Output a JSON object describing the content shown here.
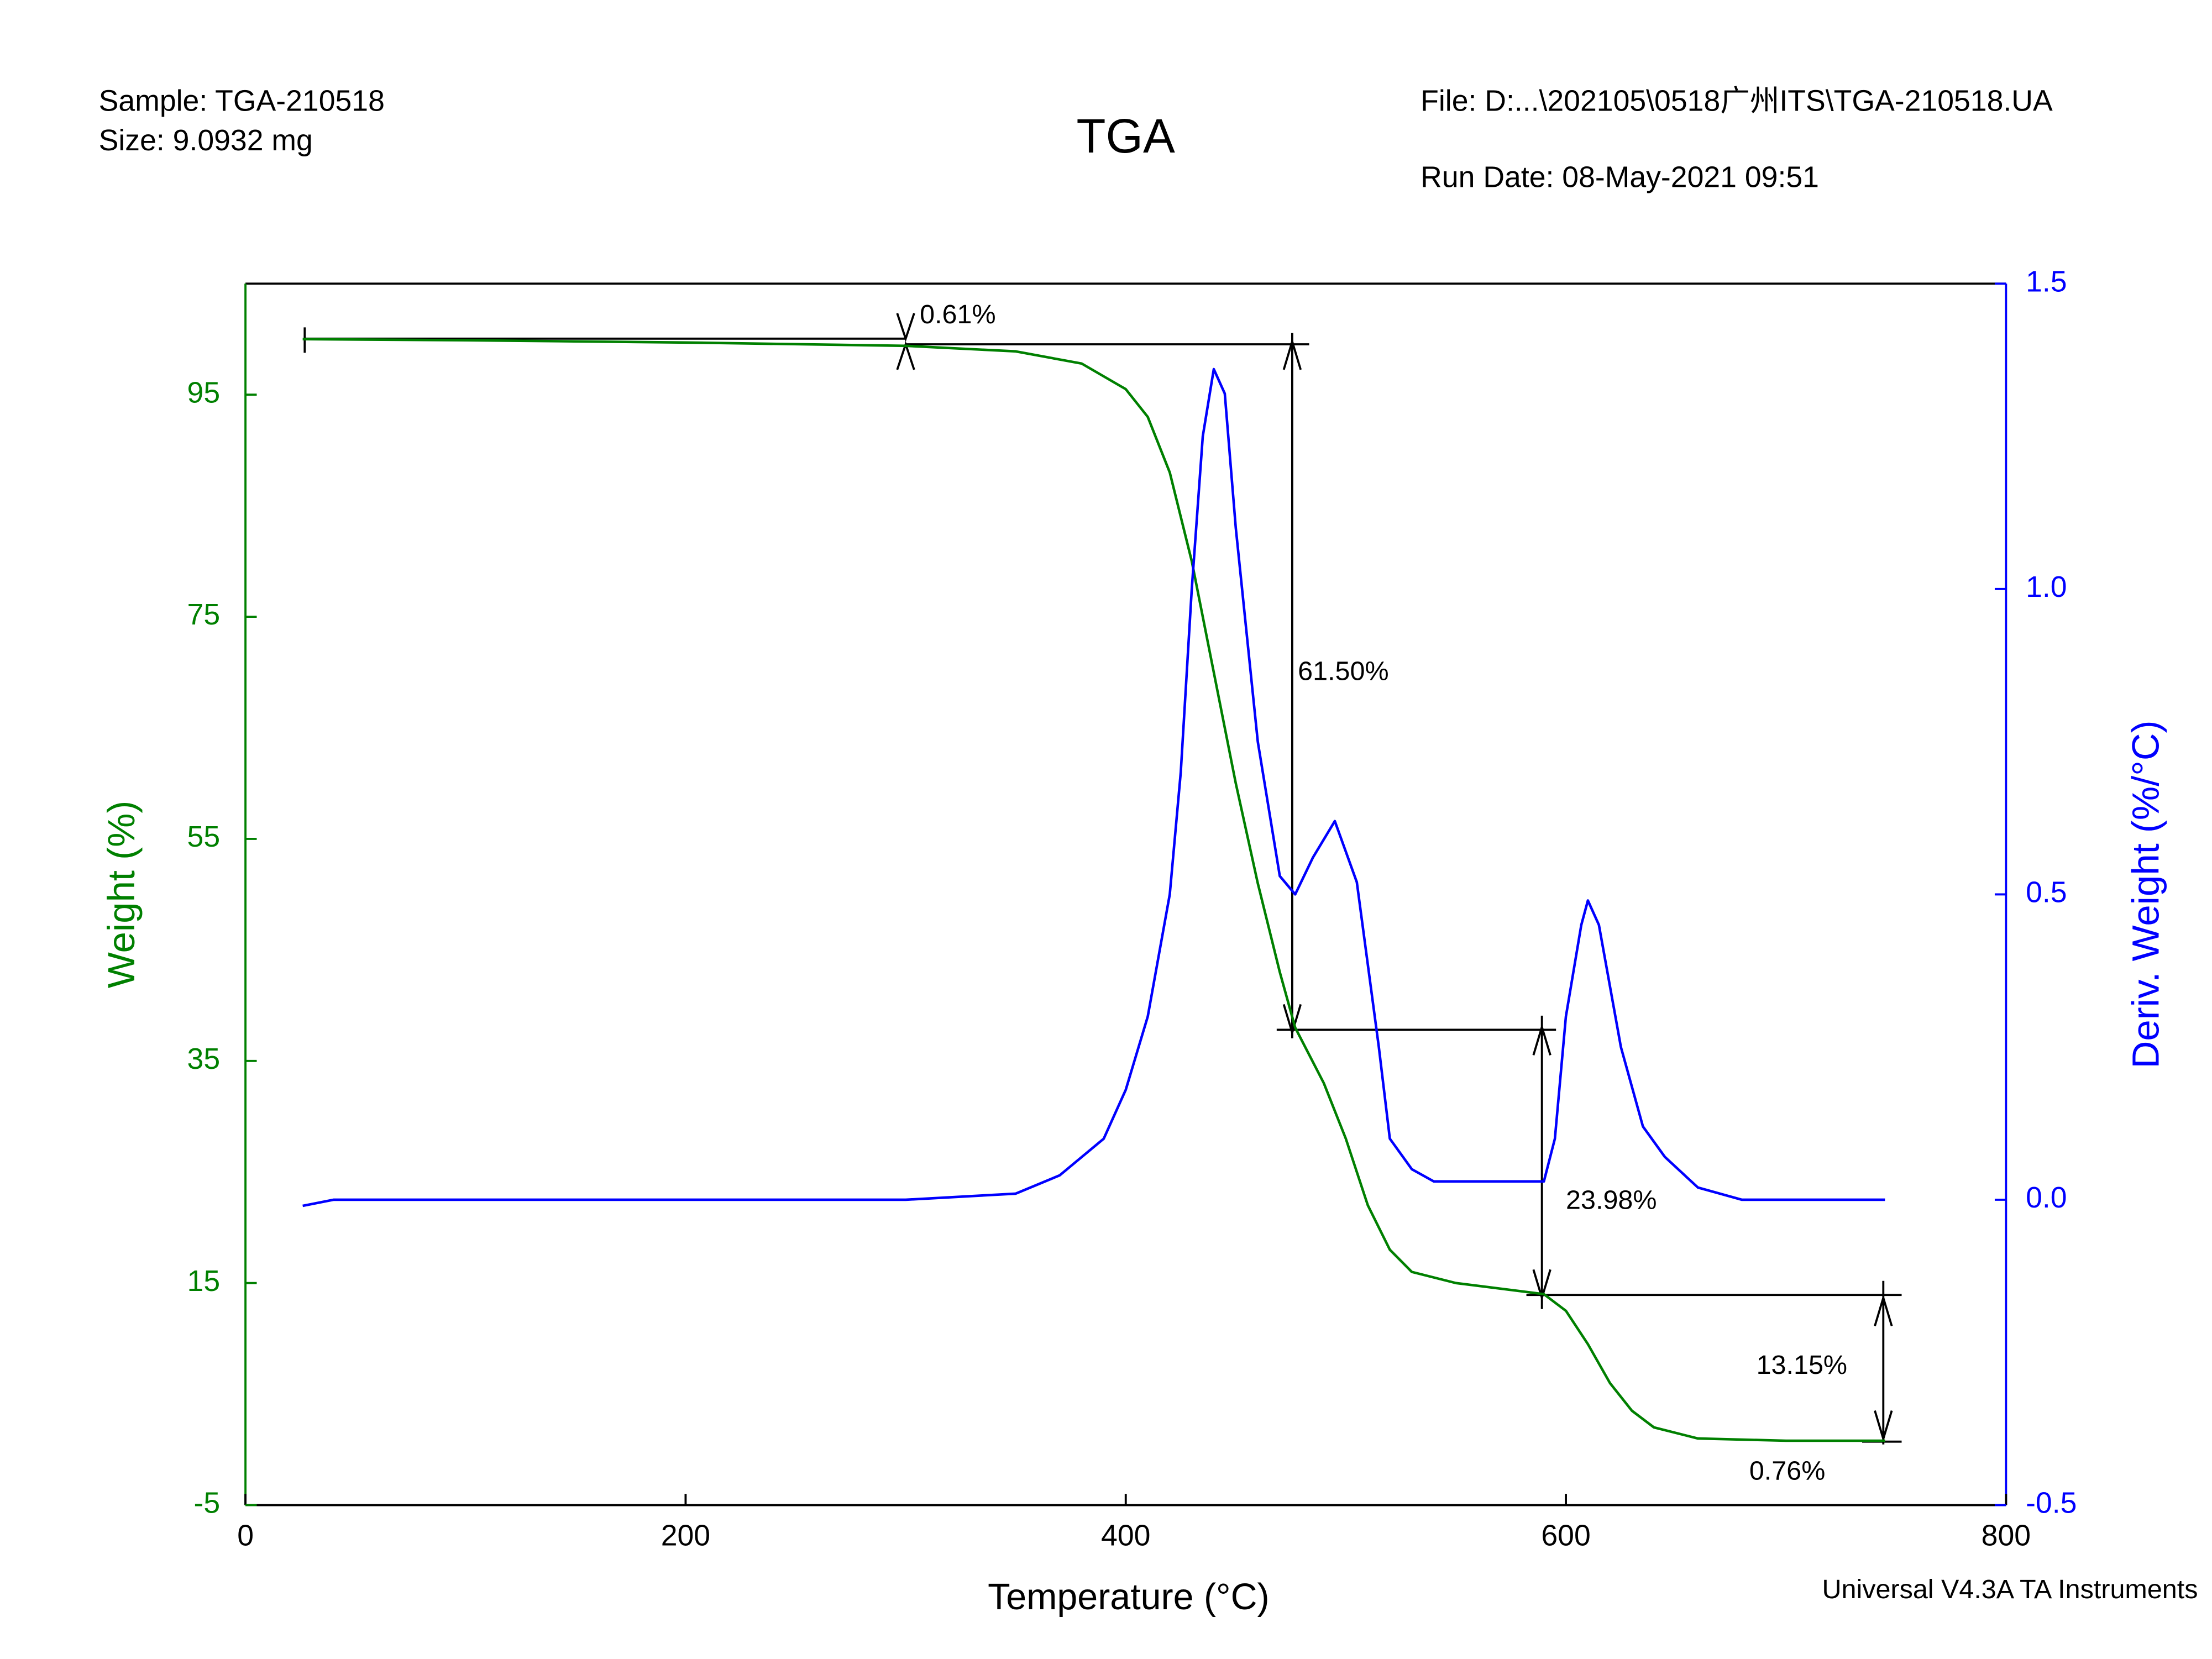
{
  "chart_data": {
    "type": "line",
    "title": "TGA",
    "sample": "Sample: TGA-210518",
    "size": "Size:  9.0932 mg",
    "file": "File: D:...\\202105\\0518广州ITS\\TGA-210518.UA",
    "run_date": "Run Date: 08-May-2021 09:51",
    "footer": "Universal V4.3A TA Instruments",
    "x_label": "Temperature (°C)",
    "y_label": "Weight (%)",
    "y2_label": "Deriv. Weight (%/°C)",
    "xlim": [
      0,
      800
    ],
    "xticks": [
      0,
      200,
      400,
      600,
      800
    ],
    "ylim": [
      -5,
      105
    ],
    "yticks": [
      -5,
      15,
      35,
      55,
      75,
      95
    ],
    "y2lim": [
      -0.5,
      1.5
    ],
    "y2ticks": [
      -0.5,
      {
        "value": 0,
        "label": "0.0"
      },
      0.5,
      {
        "value": 1,
        "label": "1.0"
      },
      1.5
    ],
    "y_color": "#008000",
    "y2_color": "#0000ff",
    "series": [
      {
        "color": "#008000",
        "axis": "y",
        "x": [
          26,
          100,
          200,
          300,
          350,
          380,
          400,
          410,
          420,
          430,
          440,
          450,
          460,
          470,
          477,
          490,
          500,
          510,
          520,
          530,
          550,
          590,
          600,
          610,
          620,
          630,
          640,
          660,
          700,
          745
        ],
        "values": [
          100,
          99.9,
          99.7,
          99.4,
          98.9,
          97.8,
          95.5,
          93,
          88,
          80,
          70,
          60,
          51,
          43,
          38,
          33,
          28,
          22,
          18,
          16,
          15,
          14,
          12.5,
          9.5,
          6,
          3.5,
          2,
          1,
          0.8,
          0.8
        ]
      },
      {
        "color": "#0000ff",
        "axis": "y2",
        "x": [
          26,
          40,
          300,
          350,
          370,
          390,
          400,
          410,
          420,
          425,
          430,
          435,
          440,
          445,
          450,
          460,
          470,
          477,
          485,
          495,
          505,
          515,
          520,
          530,
          540,
          590,
          595,
          600,
          607,
          610,
          615,
          625,
          635,
          645,
          660,
          680,
          745
        ],
        "values": [
          -0.01,
          0,
          0,
          0.01,
          0.04,
          0.1,
          0.18,
          0.3,
          0.5,
          0.7,
          1.0,
          1.25,
          1.36,
          1.32,
          1.1,
          0.75,
          0.53,
          0.5,
          0.56,
          0.62,
          0.52,
          0.25,
          0.1,
          0.05,
          0.03,
          0.03,
          0.1,
          0.3,
          0.45,
          0.49,
          0.45,
          0.25,
          0.12,
          0.07,
          0.02,
          0,
          0
        ]
      }
    ],
    "annotations": [
      "0.61%",
      "61.50%",
      "23.98%",
      "13.15%",
      "0.76%"
    ]
  }
}
